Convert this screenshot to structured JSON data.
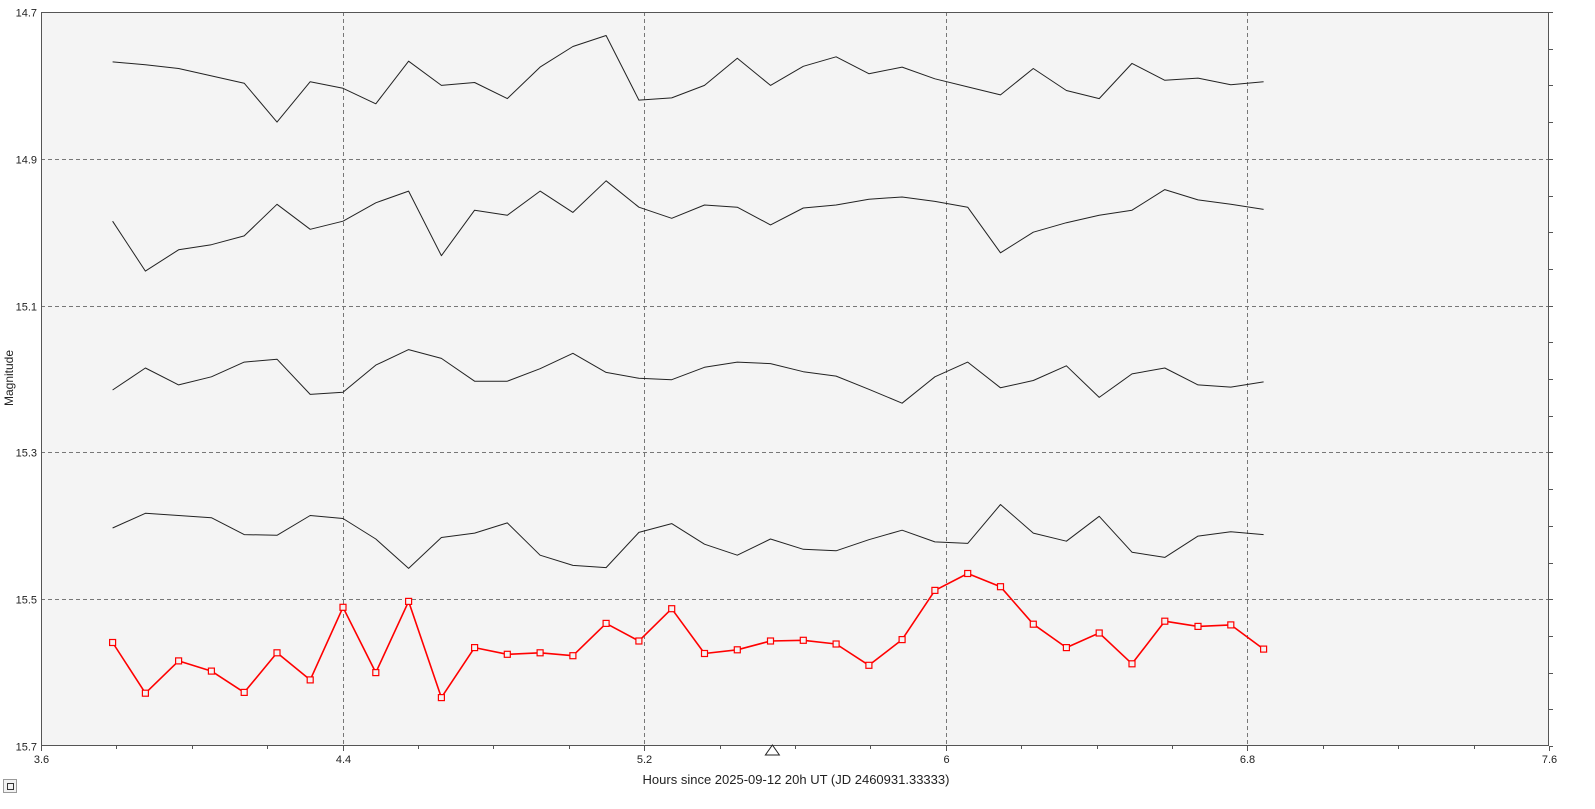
{
  "chart_data": {
    "type": "line",
    "title": "",
    "xlabel": "Hours since 2025-09-12 20h UT (JD 2460931.33333)",
    "ylabel": "Magnitude",
    "xlim": [
      3.6,
      7.6
    ],
    "ylim": [
      14.7,
      15.7
    ],
    "y_inverted": true,
    "grid": true,
    "x_ticks": [
      "3.6",
      "4.4",
      "5.2",
      "6",
      "6.8",
      "7.6"
    ],
    "x_tick_values": [
      3.6,
      4.4,
      5.2,
      6.0,
      6.8,
      7.6
    ],
    "y_ticks": [
      "14.7",
      "14.9",
      "15.1",
      "15.3",
      "15.5",
      "15.7"
    ],
    "y_tick_values": [
      14.7,
      14.9,
      15.1,
      15.3,
      15.5,
      15.7
    ],
    "x": [
      3.79,
      3.877,
      3.965,
      4.052,
      4.139,
      4.226,
      4.314,
      4.401,
      4.488,
      4.575,
      4.662,
      4.75,
      4.837,
      4.924,
      5.011,
      5.099,
      5.186,
      5.273,
      5.36,
      5.447,
      5.535,
      5.622,
      5.709,
      5.796,
      5.884,
      5.971,
      6.058,
      6.145,
      6.232,
      6.32,
      6.407,
      6.494,
      6.581,
      6.669,
      6.756,
      6.843
    ],
    "marker_at_x": 5.54,
    "series": [
      {
        "color": "#222222",
        "marker": "none",
        "values": [
          14.768,
          14.772,
          14.777,
          14.787,
          14.797,
          14.85,
          14.795,
          14.804,
          14.825,
          14.767,
          14.8,
          14.796,
          14.818,
          14.775,
          14.747,
          14.732,
          14.82,
          14.817,
          14.8,
          14.763,
          14.8,
          14.774,
          14.761,
          14.784,
          14.775,
          14.791,
          14.802,
          14.813,
          14.777,
          14.807,
          14.818,
          14.77,
          14.793,
          14.79,
          14.799,
          14.795
        ]
      },
      {
        "color": "#222222",
        "marker": "none",
        "values": [
          14.985,
          15.053,
          15.024,
          15.017,
          15.005,
          14.962,
          14.996,
          14.985,
          14.96,
          14.944,
          15.032,
          14.97,
          14.977,
          14.944,
          14.973,
          14.93,
          14.966,
          14.981,
          14.963,
          14.966,
          14.99,
          14.967,
          14.963,
          14.955,
          14.952,
          14.958,
          14.966,
          15.028,
          15.0,
          14.987,
          14.977,
          14.97,
          14.942,
          14.956,
          14.962,
          14.969
        ]
      },
      {
        "color": "#222222",
        "marker": "none",
        "values": [
          15.215,
          15.185,
          15.208,
          15.197,
          15.177,
          15.173,
          15.221,
          15.218,
          15.181,
          15.16,
          15.172,
          15.203,
          15.203,
          15.186,
          15.165,
          15.191,
          15.199,
          15.201,
          15.184,
          15.177,
          15.179,
          15.19,
          15.196,
          15.214,
          15.233,
          15.197,
          15.177,
          15.212,
          15.202,
          15.182,
          15.225,
          15.193,
          15.185,
          15.208,
          15.211,
          15.204
        ]
      },
      {
        "color": "#222222",
        "marker": "none",
        "values": [
          15.403,
          15.383,
          15.386,
          15.389,
          15.412,
          15.413,
          15.386,
          15.39,
          15.418,
          15.458,
          15.416,
          15.41,
          15.396,
          15.44,
          15.454,
          15.457,
          15.409,
          15.397,
          15.425,
          15.44,
          15.418,
          15.432,
          15.434,
          15.419,
          15.406,
          15.422,
          15.424,
          15.371,
          15.41,
          15.421,
          15.387,
          15.436,
          15.443,
          15.414,
          15.408,
          15.412
        ]
      },
      {
        "color": "#ff0000",
        "marker": "square",
        "values": [
          15.559,
          15.628,
          15.584,
          15.598,
          15.627,
          15.573,
          15.61,
          15.511,
          15.6,
          15.503,
          15.634,
          15.566,
          15.575,
          15.573,
          15.577,
          15.533,
          15.557,
          15.513,
          15.574,
          15.569,
          15.557,
          15.556,
          15.561,
          15.59,
          15.555,
          15.488,
          15.465,
          15.483,
          15.534,
          15.566,
          15.546,
          15.588,
          15.53,
          15.537,
          15.535,
          15.568
        ]
      }
    ]
  }
}
